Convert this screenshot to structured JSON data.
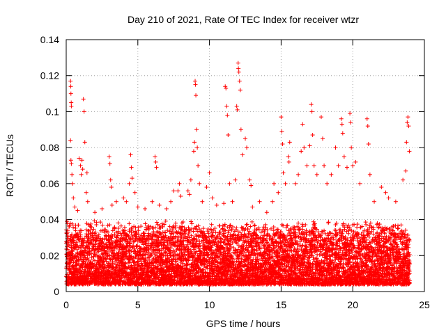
{
  "chart_data": {
    "type": "scatter",
    "title": "Day 210 of 2021, Rate Of TEC Index for receiver wtzr",
    "xlabel": "GPS time / hours",
    "ylabel": "ROTI / TECUs",
    "xlim": [
      0,
      25
    ],
    "ylim": [
      0,
      0.14
    ],
    "x_ticks": [
      "0",
      "5",
      "10",
      "15",
      "20",
      "25"
    ],
    "y_ticks": [
      "0",
      "0.02",
      "0.04",
      "0.06",
      "0.08",
      "0.1",
      "0.12",
      "0.14"
    ],
    "grid": true,
    "marker": "+",
    "color": "#ff0000",
    "sampling_interval_hours": 0.01,
    "x_range_of_data": [
      0,
      23.98
    ],
    "dense_band": {
      "min": 0.004,
      "max": 0.035
    },
    "series": [
      {
        "name": "ROTI",
        "points": [
          [
            0.05,
            0.039
          ],
          [
            0.1,
            0.034
          ],
          [
            0.2,
            0.036
          ],
          [
            0.3,
            0.117
          ],
          [
            0.32,
            0.114
          ],
          [
            0.33,
            0.11
          ],
          [
            0.35,
            0.105
          ],
          [
            0.36,
            0.103
          ],
          [
            0.3,
            0.084
          ],
          [
            0.33,
            0.073
          ],
          [
            0.36,
            0.071
          ],
          [
            0.4,
            0.065
          ],
          [
            0.45,
            0.06
          ],
          [
            0.5,
            0.052
          ],
          [
            0.6,
            0.047
          ],
          [
            0.8,
            0.045
          ],
          [
            0.9,
            0.074
          ],
          [
            1.0,
            0.07
          ],
          [
            1.05,
            0.065
          ],
          [
            1.1,
            0.073
          ],
          [
            1.15,
            0.068
          ],
          [
            1.2,
            0.107
          ],
          [
            1.25,
            0.1
          ],
          [
            1.3,
            0.083
          ],
          [
            1.4,
            0.055
          ],
          [
            1.45,
            0.066
          ],
          [
            1.5,
            0.05
          ],
          [
            2.0,
            0.044
          ],
          [
            2.5,
            0.046
          ],
          [
            3.0,
            0.075
          ],
          [
            3.05,
            0.071
          ],
          [
            3.1,
            0.062
          ],
          [
            3.15,
            0.058
          ],
          [
            3.2,
            0.048
          ],
          [
            3.5,
            0.05
          ],
          [
            4.0,
            0.052
          ],
          [
            4.2,
            0.05
          ],
          [
            4.4,
            0.06
          ],
          [
            4.5,
            0.076
          ],
          [
            4.55,
            0.069
          ],
          [
            4.6,
            0.063
          ],
          [
            4.8,
            0.055
          ],
          [
            5.0,
            0.047
          ],
          [
            5.5,
            0.046
          ],
          [
            6.0,
            0.05
          ],
          [
            6.2,
            0.075
          ],
          [
            6.25,
            0.072
          ],
          [
            6.3,
            0.069
          ],
          [
            6.5,
            0.048
          ],
          [
            7.0,
            0.046
          ],
          [
            7.3,
            0.05
          ],
          [
            7.5,
            0.056
          ],
          [
            7.8,
            0.056
          ],
          [
            7.9,
            0.06
          ],
          [
            8.0,
            0.053
          ],
          [
            8.5,
            0.056
          ],
          [
            8.6,
            0.054
          ],
          [
            8.7,
            0.062
          ],
          [
            8.9,
            0.078
          ],
          [
            8.95,
            0.083
          ],
          [
            9.0,
            0.117
          ],
          [
            9.02,
            0.115
          ],
          [
            9.05,
            0.109
          ],
          [
            9.1,
            0.09
          ],
          [
            9.15,
            0.08
          ],
          [
            9.2,
            0.07
          ],
          [
            9.3,
            0.06
          ],
          [
            9.5,
            0.05
          ],
          [
            9.8,
            0.058
          ],
          [
            10.0,
            0.066
          ],
          [
            10.2,
            0.052
          ],
          [
            10.5,
            0.048
          ],
          [
            11.0,
            0.049
          ],
          [
            11.1,
            0.114
          ],
          [
            11.15,
            0.113
          ],
          [
            11.2,
            0.103
          ],
          [
            11.25,
            0.098
          ],
          [
            11.3,
            0.087
          ],
          [
            11.4,
            0.06
          ],
          [
            11.6,
            0.05
          ],
          [
            11.8,
            0.062
          ],
          [
            11.9,
            0.103
          ],
          [
            11.95,
            0.101
          ],
          [
            12.0,
            0.127
          ],
          [
            12.02,
            0.124
          ],
          [
            12.05,
            0.122
          ],
          [
            12.1,
            0.117
          ],
          [
            12.15,
            0.112
          ],
          [
            12.2,
            0.09
          ],
          [
            12.3,
            0.076
          ],
          [
            12.5,
            0.085
          ],
          [
            12.6,
            0.08
          ],
          [
            12.8,
            0.062
          ],
          [
            12.9,
            0.059
          ],
          [
            13.0,
            0.047
          ],
          [
            13.5,
            0.05
          ],
          [
            14.0,
            0.044
          ],
          [
            14.4,
            0.05
          ],
          [
            14.5,
            0.06
          ],
          [
            14.8,
            0.055
          ],
          [
            15.0,
            0.097
          ],
          [
            15.05,
            0.089
          ],
          [
            15.1,
            0.082
          ],
          [
            15.15,
            0.066
          ],
          [
            15.3,
            0.06
          ],
          [
            15.5,
            0.075
          ],
          [
            15.55,
            0.072
          ],
          [
            15.6,
            0.083
          ],
          [
            16.0,
            0.06
          ],
          [
            16.2,
            0.065
          ],
          [
            16.4,
            0.078
          ],
          [
            16.5,
            0.093
          ],
          [
            16.6,
            0.08
          ],
          [
            16.8,
            0.07
          ],
          [
            17.0,
            0.081
          ],
          [
            17.1,
            0.104
          ],
          [
            17.15,
            0.1
          ],
          [
            17.2,
            0.087
          ],
          [
            17.3,
            0.07
          ],
          [
            17.5,
            0.065
          ],
          [
            17.8,
            0.097
          ],
          [
            17.9,
            0.085
          ],
          [
            18.0,
            0.07
          ],
          [
            18.2,
            0.06
          ],
          [
            18.5,
            0.065
          ],
          [
            18.8,
            0.08
          ],
          [
            19.0,
            0.07
          ],
          [
            19.2,
            0.096
          ],
          [
            19.25,
            0.093
          ],
          [
            19.3,
            0.088
          ],
          [
            19.4,
            0.075
          ],
          [
            19.6,
            0.069
          ],
          [
            19.8,
            0.099
          ],
          [
            19.85,
            0.094
          ],
          [
            19.9,
            0.08
          ],
          [
            20.0,
            0.07
          ],
          [
            20.2,
            0.072
          ],
          [
            20.5,
            0.06
          ],
          [
            21.0,
            0.096
          ],
          [
            21.05,
            0.092
          ],
          [
            21.1,
            0.082
          ],
          [
            21.2,
            0.065
          ],
          [
            21.5,
            0.05
          ],
          [
            22.0,
            0.058
          ],
          [
            22.3,
            0.055
          ],
          [
            22.5,
            0.052
          ],
          [
            23.0,
            0.05
          ],
          [
            23.5,
            0.062
          ],
          [
            23.7,
            0.067
          ],
          [
            23.75,
            0.083
          ],
          [
            23.8,
            0.094
          ],
          [
            23.85,
            0.097
          ],
          [
            23.9,
            0.092
          ],
          [
            23.95,
            0.078
          ]
        ]
      }
    ]
  }
}
